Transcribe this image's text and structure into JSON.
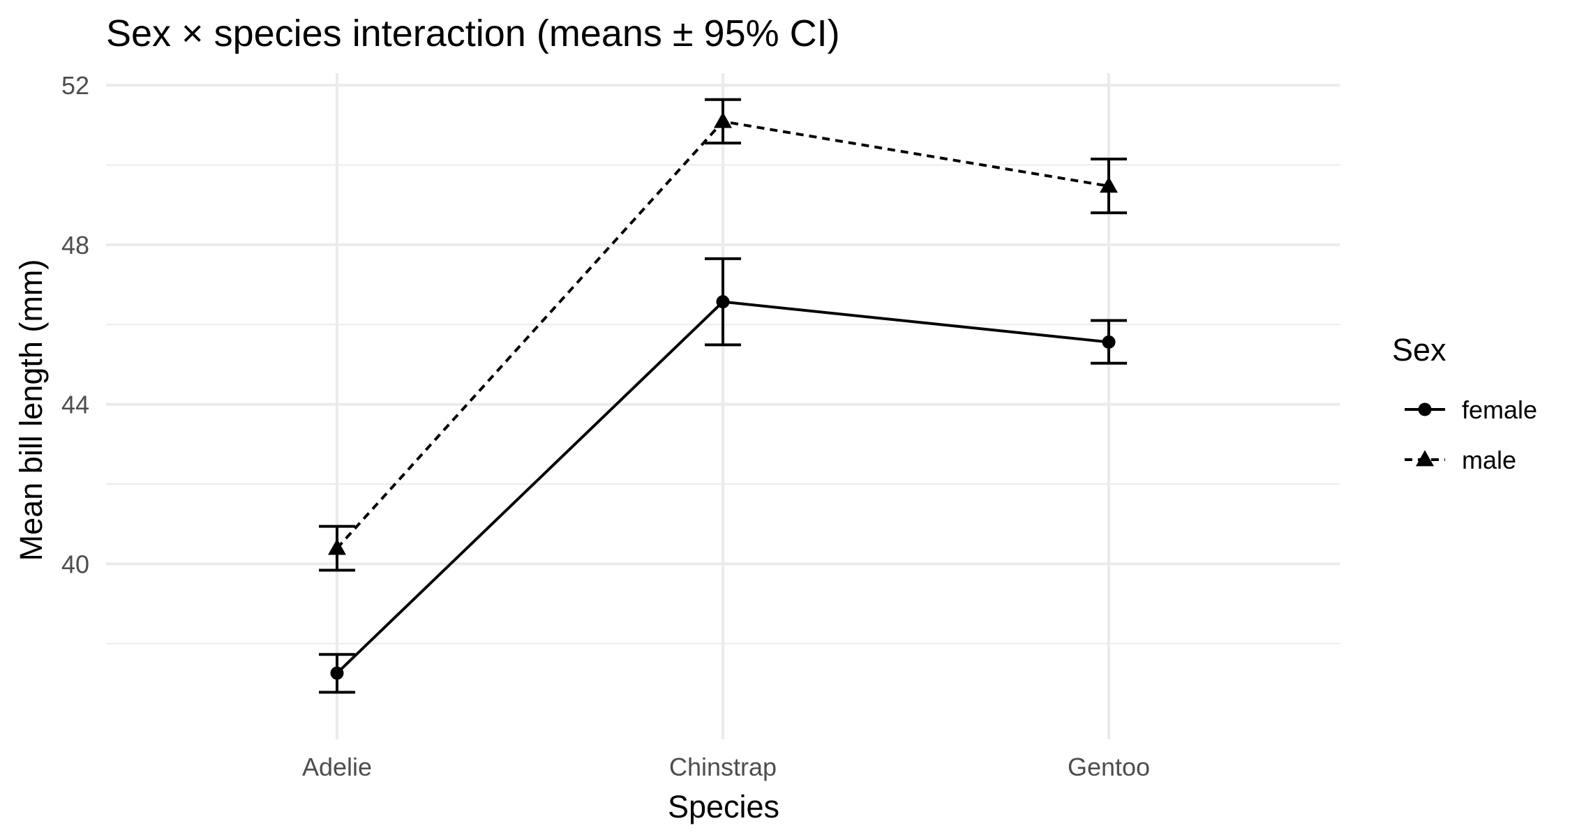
{
  "chart_data": {
    "type": "line",
    "title": "Sex × species interaction (means ± 95% CI)",
    "xlabel": "Species",
    "ylabel": "Mean bill length (mm)",
    "categories": [
      "Adelie",
      "Chinstrap",
      "Gentoo"
    ],
    "ylim": [
      35.6,
      52.3
    ],
    "yticks": [
      40,
      44,
      48,
      52
    ],
    "grid": true,
    "legend": {
      "title": "Sex",
      "position": "right"
    },
    "series": [
      {
        "name": "female",
        "values": [
          37.26,
          46.57,
          45.56
        ],
        "ci_low": [
          36.78,
          45.49,
          45.03
        ],
        "ci_high": [
          37.73,
          47.65,
          46.1
        ],
        "marker": "circle",
        "line_style": "solid",
        "color": "#000000"
      },
      {
        "name": "male",
        "values": [
          40.39,
          51.09,
          49.47
        ],
        "ci_low": [
          39.84,
          50.55,
          48.8
        ],
        "ci_high": [
          40.94,
          51.64,
          50.15
        ],
        "marker": "triangle",
        "line_style": "dashed",
        "color": "#000000"
      }
    ]
  }
}
